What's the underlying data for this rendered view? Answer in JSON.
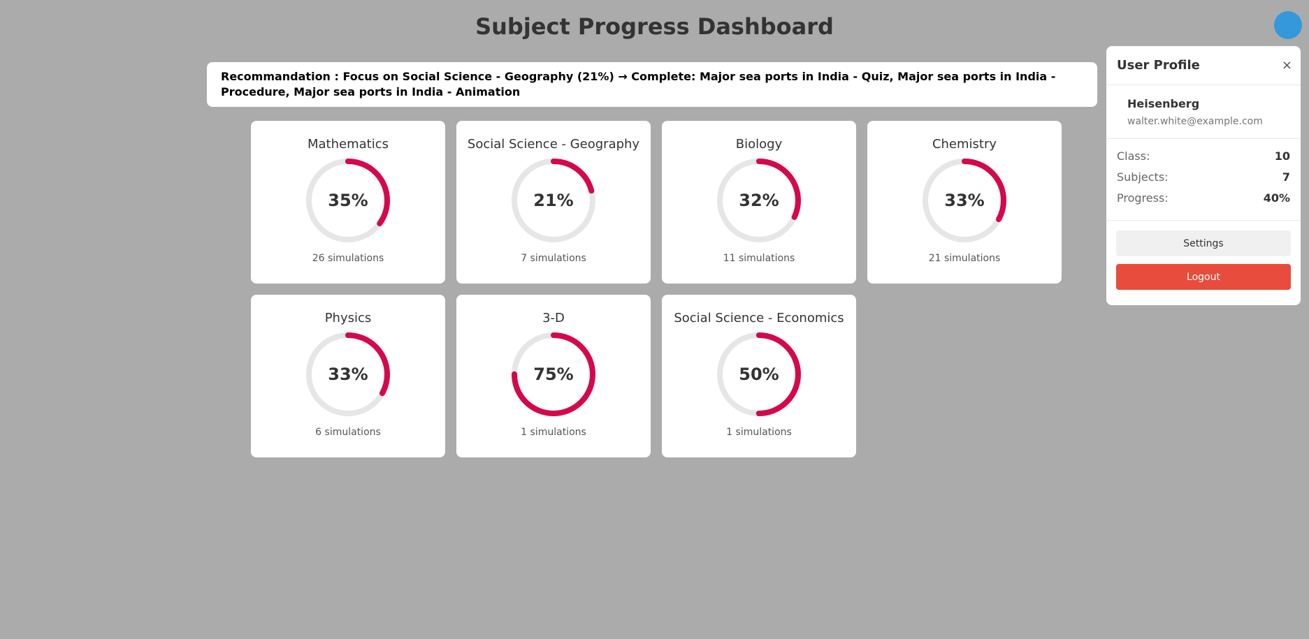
{
  "header": {
    "title": "Subject Progress Dashboard"
  },
  "recommendation": {
    "text": "Recommandation : Focus on Social Science - Geography (21%) → Complete: Major sea ports in India - Quiz, Major sea ports in India - Procedure, Major sea ports in India - Animation"
  },
  "subjects": [
    {
      "name": "Mathematics",
      "percent_label": "35%",
      "progress": 35,
      "simulations_label": "26 simulations"
    },
    {
      "name": "Social Science - Geography",
      "percent_label": "21%",
      "progress": 21,
      "simulations_label": "7 simulations"
    },
    {
      "name": "Biology",
      "percent_label": "32%",
      "progress": 32,
      "simulations_label": "11 simulations"
    },
    {
      "name": "Chemistry",
      "percent_label": "33%",
      "progress": 33,
      "simulations_label": "21 simulations"
    },
    {
      "name": "Physics",
      "percent_label": "33%",
      "progress": 33,
      "simulations_label": "6 simulations"
    },
    {
      "name": "3-D",
      "percent_label": "75%",
      "progress": 75,
      "simulations_label": "1 simulations"
    },
    {
      "name": "Social Science - Economics",
      "percent_label": "50%",
      "progress": 50,
      "simulations_label": "1 simulations"
    }
  ],
  "profile": {
    "title": "User Profile",
    "close_glyph": "×",
    "name": "Heisenberg",
    "email": "walter.white@example.com",
    "stats": [
      {
        "label": "Class:",
        "value": "10"
      },
      {
        "label": "Subjects:",
        "value": "7"
      },
      {
        "label": "Progress:",
        "value": "40%"
      }
    ],
    "settings_label": "Settings",
    "logout_label": "Logout"
  },
  "colors": {
    "background": "#ababab",
    "ring_track": "#e6e6e6",
    "ring_progress": "#d4084a",
    "avatar": "#3498db",
    "logout": "#e74c3c"
  }
}
